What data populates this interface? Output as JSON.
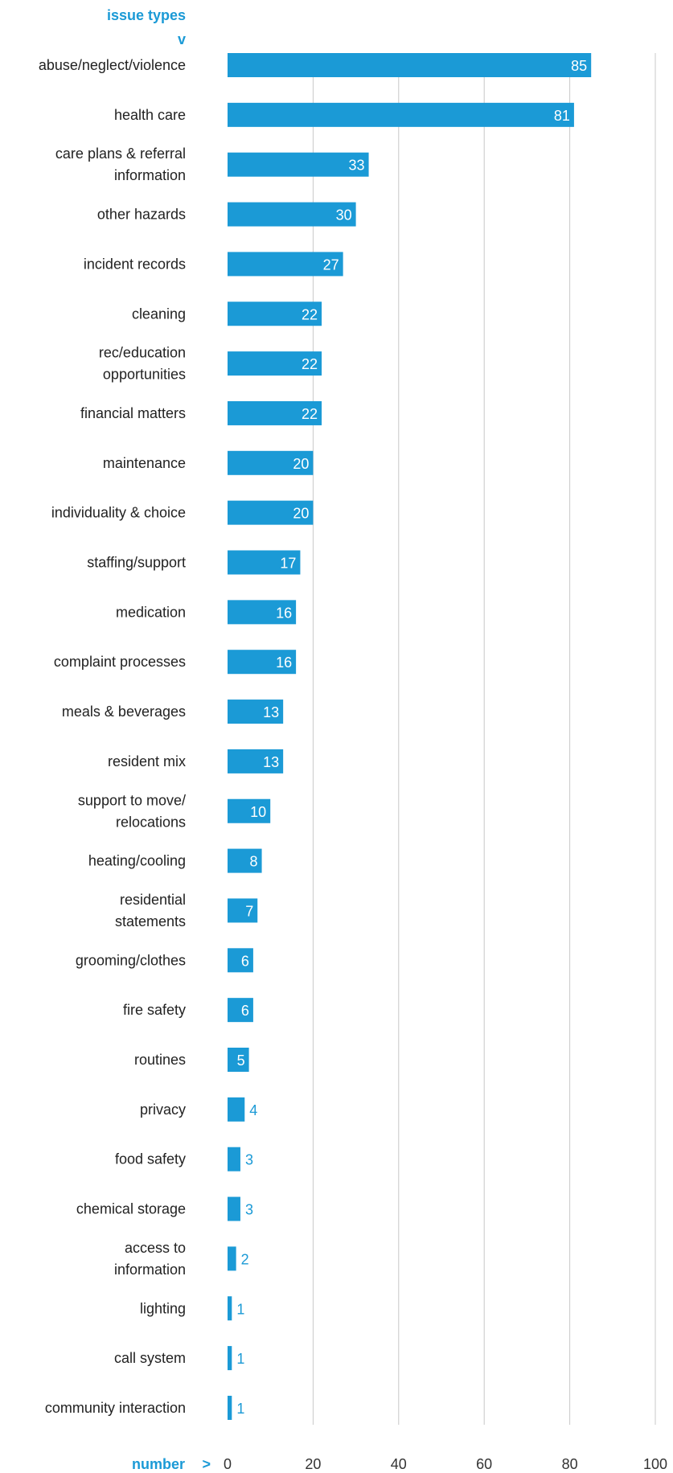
{
  "chart_data": {
    "type": "bar",
    "orientation": "horizontal",
    "ylabel": "issue types",
    "ylabel_marker": "v",
    "xlabel": "number",
    "xlabel_marker": ">",
    "xlim": [
      0,
      100
    ],
    "xticks": [
      0,
      20,
      40,
      60,
      80,
      100
    ],
    "grid": true,
    "bar_color": "#1b9ad6",
    "grid_color": "#c8c8c8",
    "accent_color": "#1b9ad6",
    "categories": [
      [
        "abuse/neglect/violence"
      ],
      [
        "health care"
      ],
      [
        "care plans & referral",
        "information"
      ],
      [
        "other hazards"
      ],
      [
        "incident records"
      ],
      [
        "cleaning"
      ],
      [
        "rec/education",
        "opportunities"
      ],
      [
        "financial matters"
      ],
      [
        "maintenance"
      ],
      [
        "individuality & choice"
      ],
      [
        "staffing/support"
      ],
      [
        "medication"
      ],
      [
        "complaint processes"
      ],
      [
        "meals & beverages"
      ],
      [
        "resident mix"
      ],
      [
        "support to move/",
        "relocations"
      ],
      [
        "heating/cooling"
      ],
      [
        "residential",
        "statements"
      ],
      [
        "grooming/clothes"
      ],
      [
        "fire safety"
      ],
      [
        "routines"
      ],
      [
        "privacy"
      ],
      [
        "food safety"
      ],
      [
        "chemical storage"
      ],
      [
        "access to",
        "information"
      ],
      [
        "lighting"
      ],
      [
        "call system"
      ],
      [
        "community interaction"
      ]
    ],
    "values": [
      85,
      81,
      33,
      30,
      27,
      22,
      22,
      22,
      20,
      20,
      17,
      16,
      16,
      13,
      13,
      10,
      8,
      7,
      6,
      6,
      5,
      4,
      3,
      3,
      2,
      1,
      1,
      1
    ]
  }
}
